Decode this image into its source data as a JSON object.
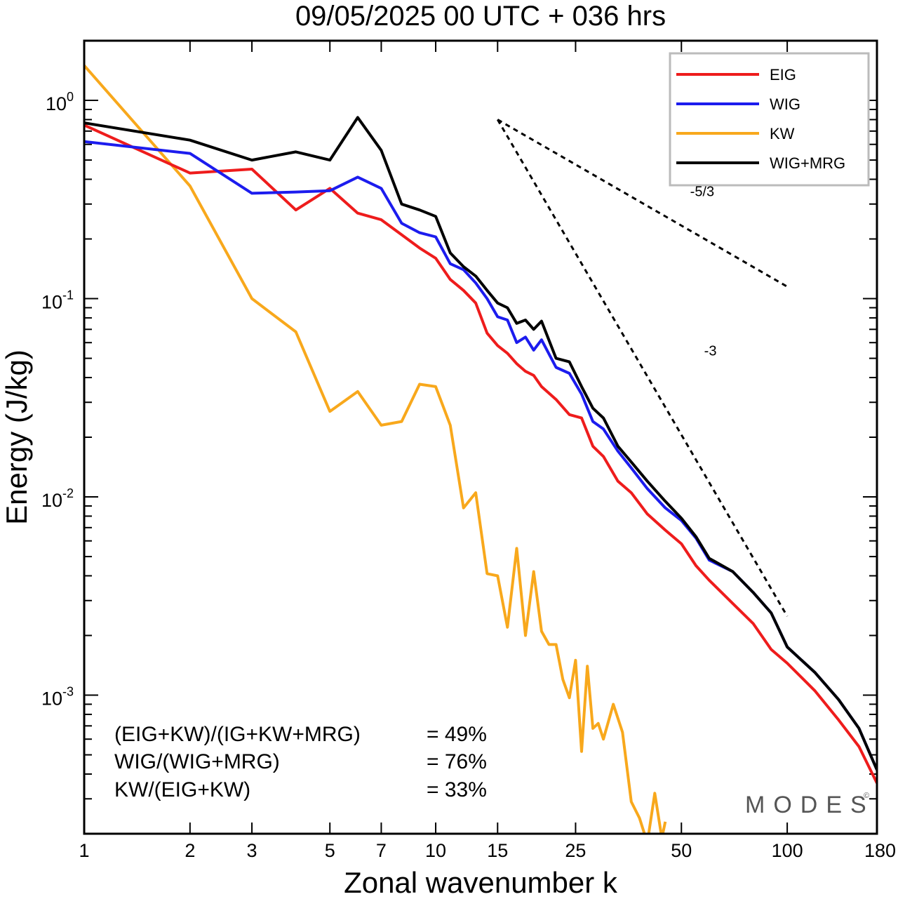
{
  "title": "09/05/2025  00 UTC  + 036 hrs",
  "chart_data": {
    "type": "line",
    "xlabel": "Zonal wavenumber k",
    "ylabel": "Energy (J/kg)",
    "xscale": "log",
    "yscale": "log",
    "xlim": [
      1,
      180
    ],
    "ylim": [
      0.0002,
      2.0
    ],
    "xticks": [
      1,
      2,
      3,
      5,
      7,
      10,
      15,
      25,
      50,
      100,
      180
    ],
    "yticks": [
      {
        "value": 1.0,
        "base": "10",
        "exp": "0"
      },
      {
        "value": 0.1,
        "base": "10",
        "exp": "-1"
      },
      {
        "value": 0.01,
        "base": "10",
        "exp": "-2"
      },
      {
        "value": 0.001,
        "base": "10",
        "exp": "-3"
      }
    ],
    "legend_position": "top-right",
    "series": [
      {
        "name": "EIG",
        "color": "#ee1c1c",
        "x": [
          1,
          2,
          3,
          4,
          5,
          6,
          7,
          8,
          9,
          10,
          11,
          12,
          13,
          14,
          15,
          16,
          17,
          18,
          19,
          20,
          22,
          24,
          26,
          28,
          30,
          33,
          36,
          40,
          45,
          50,
          55,
          60,
          70,
          80,
          90,
          100,
          120,
          140,
          160,
          180
        ],
        "y": [
          0.75,
          0.43,
          0.45,
          0.28,
          0.36,
          0.27,
          0.25,
          0.21,
          0.18,
          0.16,
          0.125,
          0.11,
          0.095,
          0.067,
          0.058,
          0.053,
          0.047,
          0.043,
          0.041,
          0.036,
          0.031,
          0.026,
          0.025,
          0.018,
          0.016,
          0.012,
          0.0105,
          0.0082,
          0.0068,
          0.0058,
          0.0045,
          0.0038,
          0.0029,
          0.0023,
          0.0017,
          0.00145,
          0.00105,
          0.00075,
          0.00055,
          0.00036
        ]
      },
      {
        "name": "WIG",
        "color": "#1c1cee",
        "x": [
          1,
          2,
          3,
          4,
          5,
          6,
          7,
          8,
          9,
          10,
          11,
          12,
          13,
          14,
          15,
          16,
          17,
          18,
          19,
          20,
          22,
          24,
          26,
          28,
          30,
          33,
          36,
          40,
          45,
          50,
          55,
          60,
          70,
          80,
          90,
          100,
          120,
          140,
          160,
          180
        ],
        "y": [
          0.62,
          0.54,
          0.34,
          0.345,
          0.35,
          0.41,
          0.36,
          0.24,
          0.215,
          0.205,
          0.15,
          0.14,
          0.12,
          0.1,
          0.081,
          0.078,
          0.06,
          0.064,
          0.055,
          0.062,
          0.045,
          0.042,
          0.033,
          0.024,
          0.022,
          0.017,
          0.014,
          0.011,
          0.0088,
          0.0076,
          0.0062,
          0.0048,
          0.0042,
          0.0033,
          0.0026,
          0.00175,
          0.0013,
          0.00095,
          0.00068,
          0.00042
        ]
      },
      {
        "name": "KW",
        "color": "#f8a81c",
        "x": [
          1,
          2,
          3,
          4,
          5,
          6,
          7,
          8,
          9,
          10,
          11,
          12,
          13,
          14,
          15,
          16,
          17,
          18,
          19,
          20,
          21,
          22,
          23,
          24,
          25,
          26,
          27,
          28,
          29,
          30,
          32,
          34,
          36,
          38,
          40,
          42,
          44,
          45
        ],
        "y": [
          1.5,
          0.37,
          0.1,
          0.068,
          0.027,
          0.034,
          0.023,
          0.024,
          0.037,
          0.036,
          0.023,
          0.0088,
          0.0105,
          0.0041,
          0.004,
          0.0022,
          0.0055,
          0.002,
          0.0042,
          0.0021,
          0.0018,
          0.0018,
          0.0012,
          0.00097,
          0.0015,
          0.00052,
          0.0014,
          0.00068,
          0.00072,
          0.0006,
          0.0009,
          0.00065,
          0.00029,
          0.00024,
          0.00018,
          0.00032,
          0.00019,
          0.00023
        ]
      },
      {
        "name": "WIG+MRG",
        "color": "#000000",
        "x": [
          1,
          2,
          3,
          4,
          5,
          6,
          7,
          8,
          9,
          10,
          11,
          12,
          13,
          14,
          15,
          16,
          17,
          18,
          19,
          20,
          22,
          24,
          26,
          28,
          30,
          33,
          36,
          40,
          45,
          50,
          55,
          60,
          70,
          80,
          90,
          100,
          120,
          140,
          160,
          180
        ],
        "y": [
          0.77,
          0.63,
          0.5,
          0.55,
          0.5,
          0.82,
          0.56,
          0.3,
          0.28,
          0.26,
          0.17,
          0.145,
          0.13,
          0.11,
          0.095,
          0.09,
          0.075,
          0.078,
          0.07,
          0.077,
          0.05,
          0.048,
          0.036,
          0.028,
          0.025,
          0.018,
          0.015,
          0.012,
          0.0095,
          0.0078,
          0.0063,
          0.0049,
          0.0042,
          0.0033,
          0.0026,
          0.00175,
          0.0013,
          0.00095,
          0.00068,
          0.00042
        ]
      }
    ],
    "reference_lines": [
      {
        "label": "-5/3",
        "x": [
          15,
          100
        ],
        "y": [
          0.8,
          0.115
        ]
      },
      {
        "label": "-3",
        "x": [
          15,
          100
        ],
        "y": [
          0.8,
          0.0025
        ]
      }
    ]
  },
  "annotations": {
    "ratios": [
      {
        "label": "(EIG+KW)/(IG+KW+MRG)",
        "value": "= 49%"
      },
      {
        "label": "WIG/(WIG+MRG)",
        "value": "= 76%"
      },
      {
        "label": "KW/(EIG+KW)",
        "value": "= 33%"
      }
    ],
    "logo": "MODES",
    "logo_mark": "©"
  }
}
